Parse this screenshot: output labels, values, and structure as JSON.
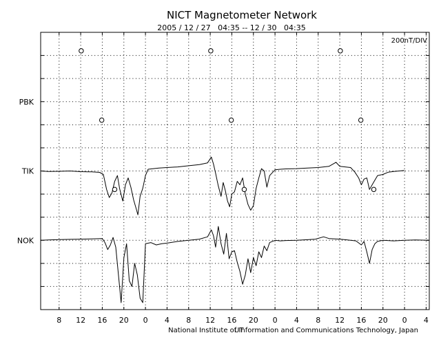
{
  "chart_data": {
    "type": "line",
    "title": "NICT Magnetometer Network",
    "subtitle": "2005 / 12 / 27   04:35 -- 12 / 30   04:35",
    "scale_label": "200nT/DIV",
    "footer": "National Institute of Information and Communications Technology, Japan",
    "xlabel": "UT",
    "xlim": [
      4.583,
      76.583
    ],
    "x_ticks": [
      {
        "hour": 8,
        "label": "8"
      },
      {
        "hour": 12,
        "label": "12"
      },
      {
        "hour": 16,
        "label": "16"
      },
      {
        "hour": 20,
        "label": "20"
      },
      {
        "hour": 24,
        "label": "0"
      },
      {
        "hour": 28,
        "label": "4"
      },
      {
        "hour": 32,
        "label": "8"
      },
      {
        "hour": 36,
        "label": "12"
      },
      {
        "hour": 40,
        "label": "16"
      },
      {
        "hour": 44,
        "label": "20"
      },
      {
        "hour": 48,
        "label": "0"
      },
      {
        "hour": 52,
        "label": "4"
      },
      {
        "hour": 56,
        "label": "8"
      },
      {
        "hour": 60,
        "label": "12"
      },
      {
        "hour": 64,
        "label": "16"
      },
      {
        "hour": 68,
        "label": "20"
      },
      {
        "hour": 72,
        "label": "0"
      },
      {
        "hour": 76,
        "label": "4"
      }
    ],
    "y_unit_nT_per_div": 200,
    "y_divisions": 12,
    "grid": true,
    "stations": [
      {
        "name": "PBK",
        "baseline_div": 9,
        "local_midnight_markers_hour": [
          12.1,
          36.1,
          60.1
        ],
        "series": []
      },
      {
        "name": "TIK",
        "baseline_div": 6,
        "local_midnight_markers_hour": [
          15.9,
          39.9,
          63.9
        ],
        "series": [
          [
            4.6,
            0
          ],
          [
            6,
            -5
          ],
          [
            8,
            -3
          ],
          [
            10,
            0
          ],
          [
            12,
            -6
          ],
          [
            14,
            -8
          ],
          [
            15.5,
            -12
          ],
          [
            16.2,
            -30
          ],
          [
            16.8,
            -160
          ],
          [
            17.3,
            -230
          ],
          [
            17.8,
            -190
          ],
          [
            18.3,
            -90
          ],
          [
            18.8,
            -40
          ],
          [
            19.2,
            -150
          ],
          [
            19.8,
            -260
          ],
          [
            20.3,
            -120
          ],
          [
            20.8,
            -60
          ],
          [
            21.3,
            -140
          ],
          [
            21.8,
            -250
          ],
          [
            22.3,
            -330
          ],
          [
            22.6,
            -380
          ],
          [
            23,
            -220
          ],
          [
            23.5,
            -150
          ],
          [
            24,
            -40
          ],
          [
            24.5,
            15
          ],
          [
            25.5,
            20
          ],
          [
            26.5,
            25
          ],
          [
            28,
            30
          ],
          [
            30,
            35
          ],
          [
            32,
            45
          ],
          [
            34,
            55
          ],
          [
            35.5,
            70
          ],
          [
            36.2,
            120
          ],
          [
            36.6,
            60
          ],
          [
            37,
            -20
          ],
          [
            37.5,
            -130
          ],
          [
            38,
            -220
          ],
          [
            38.4,
            -100
          ],
          [
            38.8,
            -170
          ],
          [
            39.2,
            -260
          ],
          [
            39.6,
            -310
          ],
          [
            40,
            -200
          ],
          [
            40.5,
            -180
          ],
          [
            41,
            -90
          ],
          [
            41.5,
            -120
          ],
          [
            42,
            -60
          ],
          [
            42.5,
            -200
          ],
          [
            43,
            -290
          ],
          [
            43.5,
            -340
          ],
          [
            44,
            -300
          ],
          [
            44.5,
            -150
          ],
          [
            45,
            -60
          ],
          [
            45.5,
            20
          ],
          [
            46,
            0
          ],
          [
            46.5,
            -140
          ],
          [
            47,
            -40
          ],
          [
            48,
            10
          ],
          [
            49,
            15
          ],
          [
            50,
            18
          ],
          [
            52,
            20
          ],
          [
            54,
            25
          ],
          [
            56,
            30
          ],
          [
            58,
            40
          ],
          [
            59.3,
            75
          ],
          [
            60,
            40
          ],
          [
            61,
            35
          ],
          [
            62,
            30
          ],
          [
            62.8,
            -10
          ],
          [
            63.5,
            -60
          ],
          [
            64,
            -120
          ],
          [
            64.5,
            -70
          ],
          [
            65,
            -60
          ],
          [
            65.5,
            -160
          ],
          [
            66,
            -120
          ],
          [
            66.5,
            -80
          ],
          [
            67,
            -40
          ],
          [
            68,
            -30
          ],
          [
            69,
            -10
          ],
          [
            70,
            -5
          ],
          [
            71,
            0
          ],
          [
            72,
            5
          ]
        ]
      },
      {
        "name": "NOK",
        "baseline_div": 3,
        "local_midnight_markers_hour": [
          18.3,
          42.3,
          66.3
        ],
        "series": [
          [
            4.6,
            0
          ],
          [
            6,
            3
          ],
          [
            8,
            6
          ],
          [
            10,
            8
          ],
          [
            12,
            10
          ],
          [
            14,
            12
          ],
          [
            16,
            15
          ],
          [
            16.5,
            -20
          ],
          [
            17,
            -80
          ],
          [
            17.5,
            -40
          ],
          [
            18,
            25
          ],
          [
            18.5,
            -60
          ],
          [
            19,
            -300
          ],
          [
            19.5,
            -540
          ],
          [
            20,
            -150
          ],
          [
            20.5,
            -30
          ],
          [
            21,
            -350
          ],
          [
            21.5,
            -400
          ],
          [
            22,
            -200
          ],
          [
            22.5,
            -300
          ],
          [
            23,
            -500
          ],
          [
            23.5,
            -540
          ],
          [
            24,
            -30
          ],
          [
            25,
            -20
          ],
          [
            26,
            -40
          ],
          [
            27,
            -30
          ],
          [
            28,
            -25
          ],
          [
            30,
            -10
          ],
          [
            32,
            0
          ],
          [
            34,
            10
          ],
          [
            35.5,
            30
          ],
          [
            36.2,
            90
          ],
          [
            36.6,
            40
          ],
          [
            37,
            -60
          ],
          [
            37.5,
            120
          ],
          [
            38,
            -30
          ],
          [
            38.5,
            -120
          ],
          [
            39,
            60
          ],
          [
            39.5,
            -160
          ],
          [
            40,
            -100
          ],
          [
            40.5,
            -90
          ],
          [
            41,
            -190
          ],
          [
            41.5,
            -270
          ],
          [
            42,
            -380
          ],
          [
            42.5,
            -300
          ],
          [
            43,
            -160
          ],
          [
            43.5,
            -280
          ],
          [
            44,
            -150
          ],
          [
            44.5,
            -220
          ],
          [
            45,
            -100
          ],
          [
            45.5,
            -150
          ],
          [
            46,
            -50
          ],
          [
            46.5,
            -90
          ],
          [
            47,
            -20
          ],
          [
            48,
            0
          ],
          [
            49,
            -5
          ],
          [
            50,
            -2
          ],
          [
            52,
            0
          ],
          [
            54,
            5
          ],
          [
            55.5,
            10
          ],
          [
            57,
            30
          ],
          [
            58,
            15
          ],
          [
            60,
            10
          ],
          [
            61,
            5
          ],
          [
            62,
            0
          ],
          [
            63,
            -5
          ],
          [
            64,
            -40
          ],
          [
            64.5,
            -10
          ],
          [
            65,
            -100
          ],
          [
            65.5,
            -200
          ],
          [
            66,
            -80
          ],
          [
            66.5,
            -30
          ],
          [
            67,
            -10
          ],
          [
            68,
            0
          ],
          [
            70,
            -5
          ],
          [
            72,
            0
          ],
          [
            74,
            3
          ],
          [
            76.5,
            0
          ]
        ]
      }
    ]
  }
}
